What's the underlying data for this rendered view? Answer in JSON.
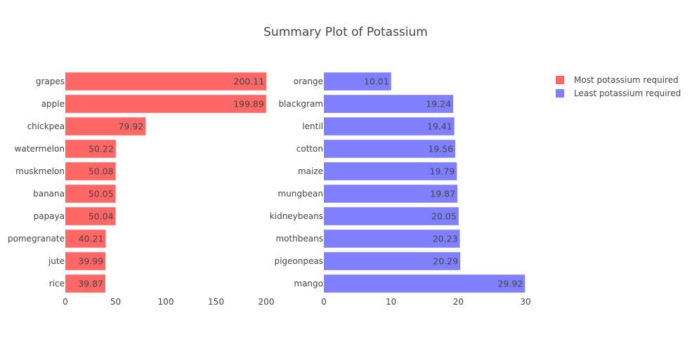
{
  "chart_data": {
    "type": "bar",
    "orientation": "horizontal",
    "title": "Summary Plot of Potassium",
    "legend_position": "top-right",
    "grid": false,
    "series": [
      {
        "name": "Most potassium required",
        "color": "#ff6666",
        "categories": [
          "grapes",
          "apple",
          "chickpea",
          "watermelon",
          "muskmelon",
          "banana",
          "papaya",
          "pomegranate",
          "jute",
          "rice"
        ],
        "values": [
          200.11,
          199.89,
          79.92,
          50.22,
          50.08,
          50.05,
          50.04,
          40.21,
          39.99,
          39.87
        ],
        "value_labels": [
          "200.11",
          "199.89",
          "79.92",
          "50.22",
          "50.08",
          "50.05",
          "50.04",
          "40.21",
          "39.99",
          "39.87"
        ],
        "xlim": [
          0,
          200
        ],
        "xticks": [
          0,
          50,
          100,
          150,
          200
        ],
        "xtick_labels": [
          "0",
          "50",
          "100",
          "150",
          "200"
        ]
      },
      {
        "name": "Least potassium required",
        "color": "#8080ff",
        "categories": [
          "orange",
          "blackgram",
          "lentil",
          "cotton",
          "maize",
          "mungbean",
          "kidneybeans",
          "mothbeans",
          "pigeonpeas",
          "mango"
        ],
        "values": [
          10.01,
          19.24,
          19.41,
          19.56,
          19.79,
          19.87,
          20.05,
          20.23,
          20.29,
          29.92
        ],
        "value_labels": [
          "10.01",
          "19.24",
          "19.41",
          "19.56",
          "19.79",
          "19.87",
          "20.05",
          "20.23",
          "20.29",
          "29.92"
        ],
        "xlim": [
          0,
          30
        ],
        "xticks": [
          0,
          10,
          20,
          30
        ],
        "xtick_labels": [
          "0",
          "10",
          "20",
          "30"
        ]
      }
    ]
  }
}
